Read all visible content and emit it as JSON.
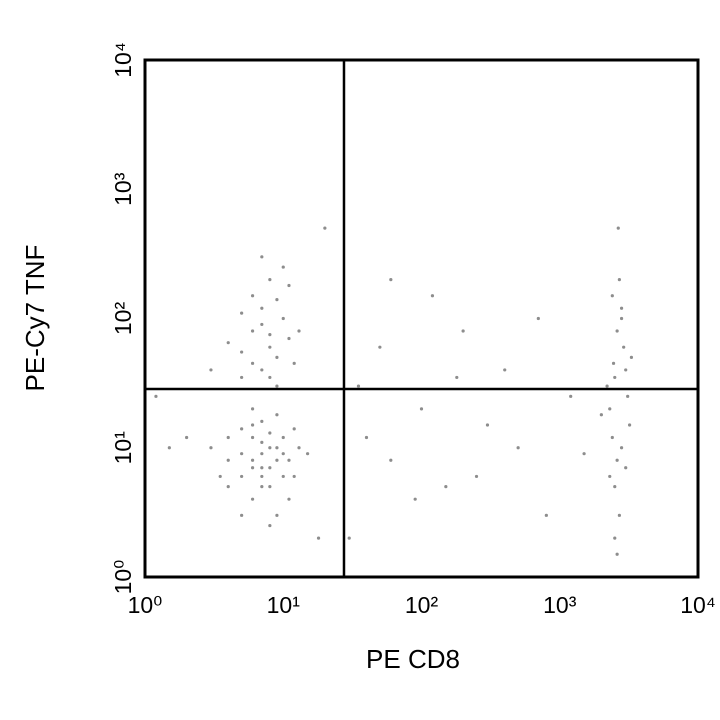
{
  "chart_data": {
    "type": "scatter",
    "xlabel": "PE CD8",
    "ylabel": "PE-Cy7 TNF",
    "xscale": "log",
    "yscale": "log",
    "xlim": [
      1,
      10000
    ],
    "ylim": [
      1,
      10000
    ],
    "xticks": [
      {
        "value": 1,
        "label": "10⁰"
      },
      {
        "value": 10,
        "label": "10¹"
      },
      {
        "value": 100,
        "label": "10²"
      },
      {
        "value": 1000,
        "label": "10³"
      },
      {
        "value": 10000,
        "label": "10⁴"
      }
    ],
    "yticks": [
      {
        "value": 1,
        "label": "10⁰"
      },
      {
        "value": 10,
        "label": "10¹"
      },
      {
        "value": 100,
        "label": "10²"
      },
      {
        "value": 1000,
        "label": "10³"
      },
      {
        "value": 10000,
        "label": "10⁴"
      }
    ],
    "gate_x": 27.5,
    "gate_y": 28.5,
    "color": "#707070",
    "x": [
      6,
      7,
      5,
      8,
      9,
      4,
      10,
      6,
      7,
      8,
      5,
      11,
      12,
      3,
      6,
      9,
      7,
      8,
      4,
      10,
      13,
      5,
      6,
      7,
      2,
      9,
      15,
      3.5,
      8,
      11,
      6,
      7,
      5,
      10,
      12,
      4,
      9,
      6,
      8,
      7,
      7,
      8,
      6,
      9,
      10,
      5,
      7,
      8,
      6,
      11,
      9,
      5,
      12,
      7,
      10,
      4,
      8,
      6,
      9,
      13,
      7,
      3,
      11,
      8,
      5,
      2500,
      2800,
      2300,
      3000,
      2600,
      2400,
      2700,
      3200,
      2200,
      2900,
      2500,
      2600,
      3100,
      2400,
      2800,
      2700,
      2300,
      3300,
      2500,
      2000,
      2600,
      3000,
      2800,
      2450,
      2650,
      40,
      60,
      100,
      150,
      300,
      500,
      800,
      50,
      200,
      400,
      120,
      60,
      35,
      700,
      250,
      90,
      1200,
      30,
      1500,
      180,
      20,
      18,
      1.5,
      1.2
    ],
    "y": [
      8,
      6,
      9,
      7,
      10,
      5,
      12,
      4,
      11,
      5,
      6,
      8,
      14,
      10,
      15,
      3,
      9,
      13,
      8,
      6,
      10,
      3,
      12,
      7,
      12,
      18,
      9,
      6,
      2.5,
      4,
      20,
      5,
      14,
      9,
      6,
      12,
      8,
      7,
      10,
      16,
      40,
      60,
      80,
      50,
      100,
      35,
      120,
      200,
      150,
      70,
      30,
      55,
      45,
      90,
      250,
      65,
      35,
      45,
      140,
      80,
      300,
      40,
      180,
      75,
      110,
      5,
      10,
      20,
      40,
      80,
      150,
      3,
      15,
      30,
      60,
      2,
      8,
      25,
      12,
      100,
      200,
      6,
      50,
      35,
      18,
      1.5,
      7,
      120,
      45,
      500,
      12,
      8,
      20,
      5,
      15,
      10,
      3,
      60,
      80,
      40,
      150,
      200,
      30,
      100,
      6,
      4,
      25,
      2,
      9,
      35,
      500,
      2,
      10,
      25
    ]
  }
}
